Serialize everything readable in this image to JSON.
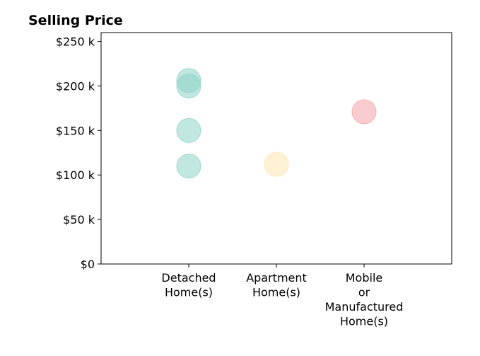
{
  "chart_data": {
    "type": "scatter",
    "title": "Selling Price",
    "xlabel": "",
    "ylabel": "",
    "ylim": [
      0,
      260000
    ],
    "grid": false,
    "categories": [
      [
        "Detached",
        "Home(s)"
      ],
      [
        "Apartment",
        "Home(s)"
      ],
      [
        "Mobile",
        "or",
        "Manufactured",
        "Home(s)"
      ]
    ],
    "y_ticks": [
      {
        "value": 0,
        "label": "$0"
      },
      {
        "value": 50000,
        "label": "$50 k"
      },
      {
        "value": 100000,
        "label": "$100 k"
      },
      {
        "value": 150000,
        "label": "$150 k"
      },
      {
        "value": 200000,
        "label": "$200 k"
      },
      {
        "value": 250000,
        "label": "$250 k"
      }
    ],
    "colors": [
      "#8dd3c7",
      "#fee6b0",
      "#f4a4a8"
    ],
    "points": [
      {
        "category": 0,
        "y": 110000
      },
      {
        "category": 0,
        "y": 150000
      },
      {
        "category": 0,
        "y": 200000
      },
      {
        "category": 0,
        "y": 206000
      },
      {
        "category": 1,
        "y": 112000
      },
      {
        "category": 2,
        "y": 171000
      }
    ]
  }
}
